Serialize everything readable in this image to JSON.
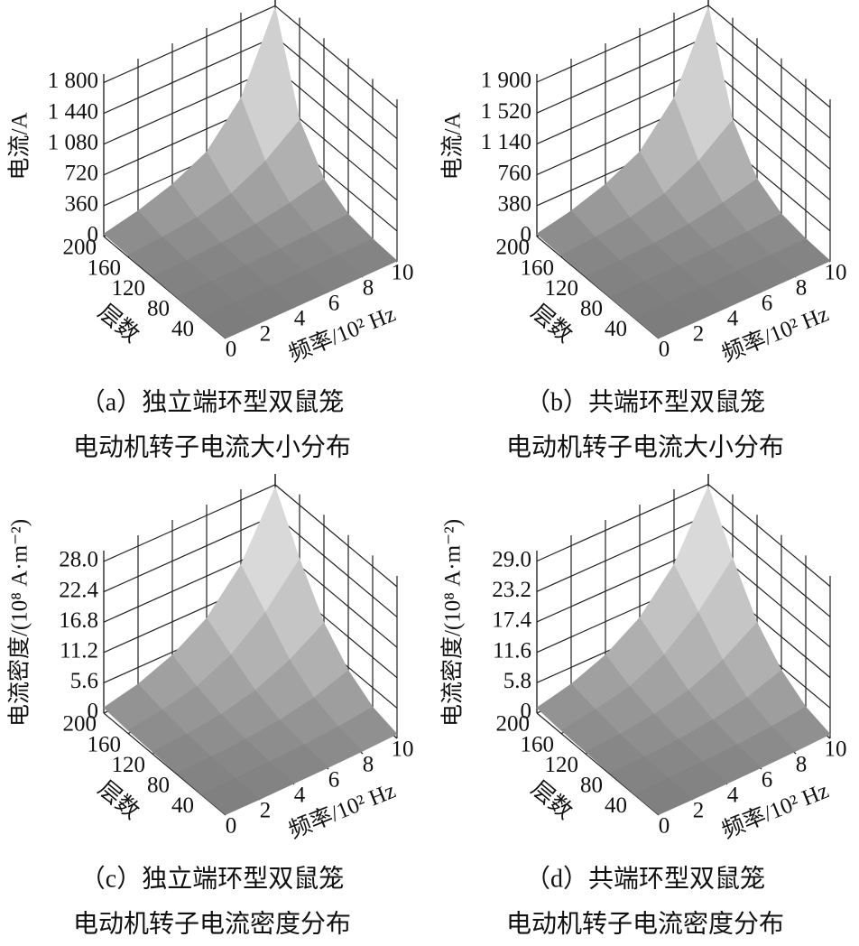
{
  "chart_data": [
    {
      "type": "surface3d",
      "caption": [
        "（a）独立端环型双鼠笼",
        "电动机转子电流大小分布"
      ],
      "x_label": "频率/10² Hz",
      "y_label": "层数",
      "z_label": "电流/A",
      "x": [
        0,
        2,
        4,
        6,
        8,
        10
      ],
      "y": [
        0,
        40,
        80,
        120,
        160,
        200
      ],
      "z": [
        [
          2,
          3,
          4,
          5,
          8,
          10
        ],
        [
          3,
          5,
          8,
          12,
          20,
          30
        ],
        [
          5,
          10,
          15,
          30,
          50,
          80
        ],
        [
          10,
          20,
          40,
          80,
          150,
          250
        ],
        [
          20,
          50,
          100,
          200,
          400,
          700
        ],
        [
          30,
          120,
          250,
          450,
          900,
          1780
        ]
      ],
      "xlim": [
        0,
        10
      ],
      "xticks": [
        0,
        2,
        4,
        6,
        8,
        10
      ],
      "ylim": [
        0,
        200
      ],
      "yticks": [
        40,
        80,
        120,
        160,
        200
      ],
      "zlim": [
        0,
        1900
      ],
      "zticks": [
        0,
        360,
        720,
        {
          "value": 1080,
          "label": "1 080"
        },
        {
          "value": 1440,
          "label": "1 440"
        },
        {
          "value": 1800,
          "label": "1 800"
        }
      ]
    },
    {
      "type": "surface3d",
      "caption": [
        "（b）共端环型双鼠笼",
        "电动机转子电流大小分布"
      ],
      "x_label": "频率/10² Hz",
      "y_label": "层数",
      "z_label": "电流/A",
      "x": [
        0,
        2,
        4,
        6,
        8,
        10
      ],
      "y": [
        0,
        40,
        80,
        120,
        160,
        200
      ],
      "z": [
        [
          2,
          3,
          4,
          5,
          8,
          11
        ],
        [
          3,
          5,
          8,
          13,
          21,
          32
        ],
        [
          5,
          11,
          16,
          32,
          53,
          85
        ],
        [
          11,
          21,
          42,
          85,
          160,
          265
        ],
        [
          21,
          53,
          105,
          210,
          420,
          740
        ],
        [
          32,
          125,
          265,
          475,
          950,
          1880
        ]
      ],
      "xlim": [
        0,
        10
      ],
      "xticks": [
        0,
        2,
        4,
        6,
        8,
        10
      ],
      "ylim": [
        0,
        200
      ],
      "yticks": [
        40,
        80,
        120,
        160,
        200
      ],
      "zlim": [
        0,
        2000
      ],
      "zticks": [
        0,
        380,
        760,
        {
          "value": 1140,
          "label": "1 140"
        },
        {
          "value": 1520,
          "label": "1 520"
        },
        {
          "value": 1900,
          "label": "1 900"
        }
      ]
    },
    {
      "type": "surface3d",
      "caption": [
        "（c）独立端环型双鼠笼",
        "电动机转子电流密度分布"
      ],
      "x_label": "频率/10² Hz",
      "y_label": "层数",
      "z_label": "电流密度/(10⁸ A·m⁻²)",
      "x": [
        0,
        2,
        4,
        6,
        8,
        10
      ],
      "y": [
        0,
        40,
        80,
        120,
        160,
        200
      ],
      "z": [
        [
          0.1,
          0.1,
          0.2,
          0.3,
          0.5,
          0.8
        ],
        [
          0.1,
          0.2,
          0.4,
          0.7,
          1.2,
          2.0
        ],
        [
          0.2,
          0.4,
          0.8,
          1.5,
          2.8,
          5.0
        ],
        [
          0.4,
          0.8,
          1.6,
          3.2,
          6.0,
          10.0
        ],
        [
          0.6,
          1.5,
          3.0,
          6.0,
          11.0,
          18.0
        ],
        [
          1.0,
          2.5,
          5.0,
          9.0,
          16.0,
          27.5
        ]
      ],
      "xlim": [
        0,
        10
      ],
      "xticks": [
        0,
        2,
        4,
        6,
        8,
        10
      ],
      "ylim": [
        0,
        200
      ],
      "yticks": [
        40,
        80,
        120,
        160,
        200
      ],
      "zlim": [
        0,
        30
      ],
      "zticks": [
        0,
        5.6,
        11.2,
        16.8,
        22.4,
        {
          "value": 28,
          "label": "28.0"
        }
      ]
    },
    {
      "type": "surface3d",
      "caption": [
        "（d）共端环型双鼠笼",
        "电动机转子电流密度分布"
      ],
      "x_label": "频率/10² Hz",
      "y_label": "层数",
      "z_label": "电流密度/(10⁸ A·m⁻²)",
      "x": [
        0,
        2,
        4,
        6,
        8,
        10
      ],
      "y": [
        0,
        40,
        80,
        120,
        160,
        200
      ],
      "z": [
        [
          0.1,
          0.1,
          0.2,
          0.3,
          0.5,
          0.8
        ],
        [
          0.1,
          0.2,
          0.4,
          0.7,
          1.3,
          2.1
        ],
        [
          0.2,
          0.4,
          0.8,
          1.6,
          2.9,
          5.2
        ],
        [
          0.4,
          0.8,
          1.7,
          3.3,
          6.2,
          10.4
        ],
        [
          0.6,
          1.6,
          3.1,
          6.2,
          11.4,
          18.7
        ],
        [
          1.0,
          2.6,
          5.2,
          9.4,
          16.6,
          28.6
        ]
      ],
      "xlim": [
        0,
        10
      ],
      "xticks": [
        0,
        2,
        4,
        6,
        8,
        10
      ],
      "ylim": [
        0,
        200
      ],
      "yticks": [
        40,
        80,
        120,
        160,
        200
      ],
      "zlim": [
        0,
        31
      ],
      "zticks": [
        0,
        5.8,
        11.6,
        17.4,
        23.2,
        {
          "value": 29,
          "label": "29.0"
        }
      ]
    }
  ]
}
